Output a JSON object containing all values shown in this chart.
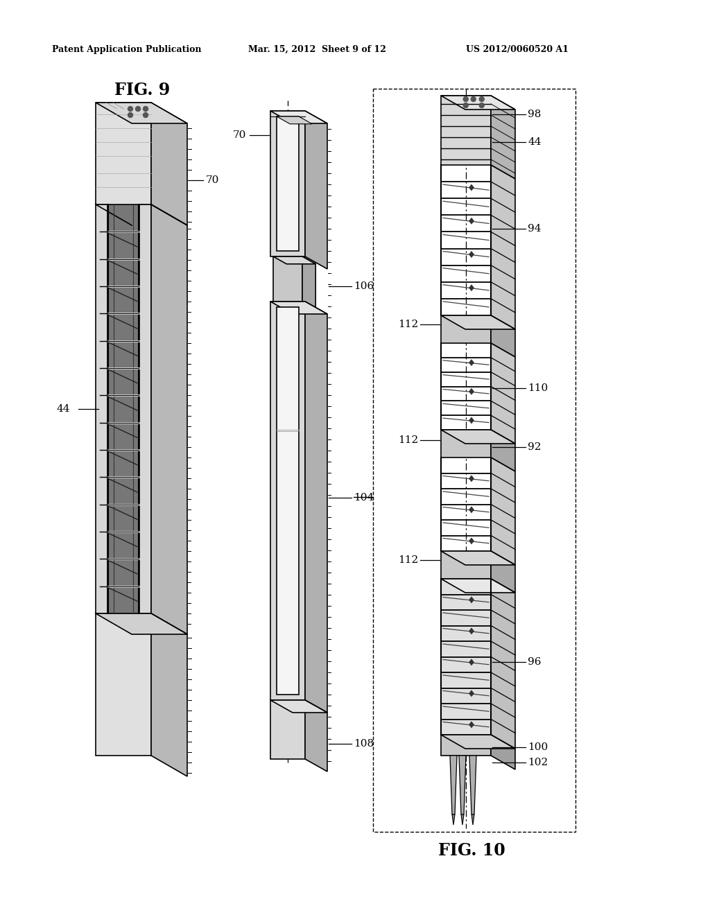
{
  "bg_color": "#ffffff",
  "header_left": "Patent Application Publication",
  "header_mid": "Mar. 15, 2012  Sheet 9 of 12",
  "header_right": "US 2012/0060520 A1",
  "fig9_label": "FIG. 9",
  "fig10_label": "FIG. 10",
  "line_color": "#000000",
  "fill_front": "#e8e8e8",
  "fill_side": "#c0c0c0",
  "fill_top": "#f0f0f0",
  "fill_dark": "#888888",
  "fill_mid": "#d4d4d4"
}
